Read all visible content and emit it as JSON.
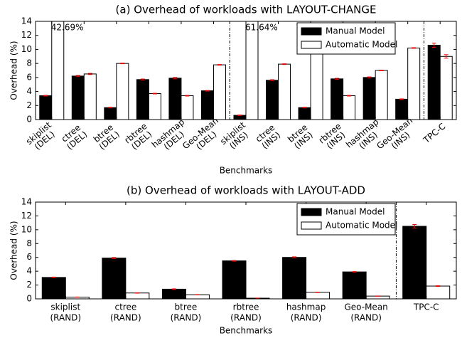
{
  "chart_data": [
    {
      "type": "bar",
      "title": "(a) Overhead of workloads with LAYOUT-CHANGE",
      "xlabel": "Benchmarks",
      "ylabel": "Overhead (%)",
      "categories": [
        [
          "skiplist",
          "(DEL)"
        ],
        [
          "ctree",
          "(DEL)"
        ],
        [
          "btree",
          "(DEL)"
        ],
        [
          "rbtree",
          "(DEL)"
        ],
        [
          "hashmap",
          "(DEL)"
        ],
        [
          "Geo-Mean",
          "(DEL)"
        ],
        [
          "skiplist",
          "(INS)"
        ],
        [
          "ctree",
          "(INS)"
        ],
        [
          "btree",
          "(INS)"
        ],
        [
          "rbtree",
          "(INS)"
        ],
        [
          "hashmap",
          "(INS)"
        ],
        [
          "Geo-Mean",
          "(INS)"
        ],
        [
          "TPC-C"
        ]
      ],
      "series": [
        {
          "name": "Manual Model",
          "color": "#000000",
          "values": [
            3.4,
            6.2,
            1.7,
            5.7,
            5.9,
            4.1,
            0.6,
            5.6,
            1.7,
            5.8,
            6.0,
            2.9,
            10.6
          ],
          "errors": [
            0.05,
            0.08,
            0.05,
            0.08,
            0.1,
            0.05,
            0.05,
            0.08,
            0.05,
            0.08,
            0.08,
            0.05,
            0.3
          ]
        },
        {
          "name": "Automatic Model",
          "color": "#ffffff",
          "values": [
            42.69,
            6.5,
            8.0,
            3.7,
            3.4,
            7.8,
            61.64,
            7.9,
            9.5,
            3.4,
            7.0,
            10.2,
            9.0
          ],
          "errors": [
            0.05,
            0.08,
            0.05,
            0.05,
            0.05,
            0.05,
            0.05,
            0.05,
            0.05,
            0.05,
            0.05,
            0.05,
            0.25
          ],
          "value_labels": [
            "42.69%",
            null,
            null,
            null,
            null,
            null,
            "61.64%",
            null,
            null,
            null,
            null,
            null,
            null
          ]
        }
      ],
      "ylim": [
        0,
        14
      ],
      "yticks": [
        0,
        2,
        4,
        6,
        8,
        10,
        12,
        14
      ],
      "legend": "upper right"
    },
    {
      "type": "bar",
      "title": "(b) Overhead of workloads with LAYOUT-ADD",
      "xlabel": "Benchmarks",
      "ylabel": "Overhead (%)",
      "categories": [
        [
          "skiplist",
          "(RAND)"
        ],
        [
          "ctree",
          "(RAND)"
        ],
        [
          "btree",
          "(RAND)"
        ],
        [
          "rbtree",
          "(RAND)"
        ],
        [
          "hashmap",
          "(RAND)"
        ],
        [
          "Geo-Mean",
          "(RAND)"
        ],
        [
          "TPC-C"
        ]
      ],
      "series": [
        {
          "name": "Manual Model",
          "color": "#000000",
          "values": [
            3.1,
            5.9,
            1.4,
            5.5,
            6.0,
            3.9,
            10.5
          ],
          "errors": [
            0.05,
            0.08,
            0.05,
            0.05,
            0.08,
            0.05,
            0.25
          ]
        },
        {
          "name": "Automatic Model",
          "color": "#ffffff",
          "values": [
            0.25,
            0.85,
            0.6,
            0.1,
            0.95,
            0.4,
            1.85
          ],
          "errors": [
            0.02,
            0.03,
            0.02,
            0.02,
            0.03,
            0.02,
            0.05
          ]
        }
      ],
      "ylim": [
        0,
        14
      ],
      "yticks": [
        0,
        2,
        4,
        6,
        8,
        10,
        12,
        14
      ],
      "legend": "upper right"
    }
  ]
}
